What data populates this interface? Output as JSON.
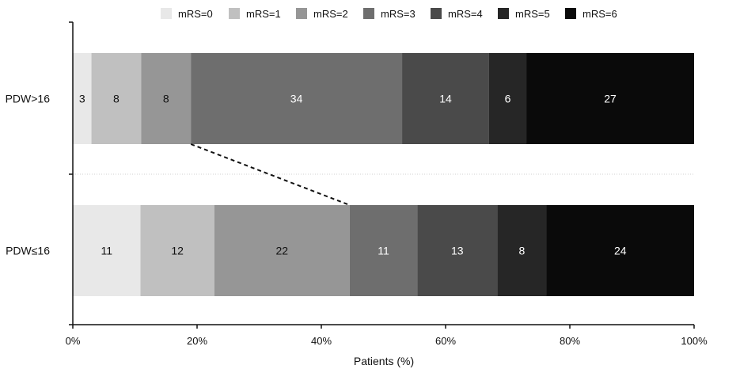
{
  "chart_data": {
    "type": "bar",
    "orientation": "horizontal",
    "stacked": true,
    "normalized_percent": true,
    "categories": [
      "PDW>16",
      "PDW≤16"
    ],
    "series": [
      {
        "name": "mRS=0",
        "values": [
          3,
          11
        ],
        "color": "#e8e8e8"
      },
      {
        "name": "mRS=1",
        "values": [
          8,
          12
        ],
        "color": "#c0c0c0"
      },
      {
        "name": "mRS=2",
        "values": [
          8,
          22
        ],
        "color": "#969696"
      },
      {
        "name": "mRS=3",
        "values": [
          34,
          11
        ],
        "color": "#6e6e6e"
      },
      {
        "name": "mRS=4",
        "values": [
          14,
          13
        ],
        "color": "#4a4a4a"
      },
      {
        "name": "mRS=5",
        "values": [
          6,
          8
        ],
        "color": "#262626"
      },
      {
        "name": "mRS=6",
        "values": [
          27,
          24
        ],
        "color": "#0a0a0a"
      }
    ],
    "xlabel": "Patients (%)",
    "ylabel": "",
    "xlim": [
      0,
      100
    ],
    "x_ticks": [
      "0%",
      "20%",
      "40%",
      "60%",
      "80%",
      "100%"
    ],
    "legend_position": "top",
    "grid": false,
    "annotation": "dashed connector from end of mRS=2 segment (PDW>16) to end of mRS=2 segment (PDW≤16)"
  }
}
